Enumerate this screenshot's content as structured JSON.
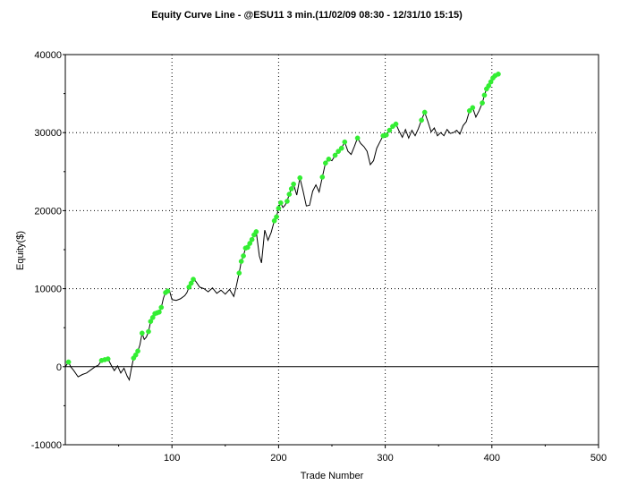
{
  "chart_data": {
    "type": "line",
    "title": "Equity Curve Line - @ESU11 3 min.(11/02/09 08:30 - 12/31/10 15:15)",
    "xlabel": "Trade Number",
    "ylabel": "Equity($)",
    "xlim": [
      0,
      500
    ],
    "ylim": [
      -10000,
      40000
    ],
    "x_ticks": [
      100,
      200,
      300,
      400,
      500
    ],
    "y_ticks": [
      -10000,
      0,
      10000,
      20000,
      30000,
      40000
    ],
    "grid": true,
    "series": [
      {
        "values": [
          [
            0,
            0
          ],
          [
            3,
            600
          ],
          [
            5,
            0
          ],
          [
            8,
            -500
          ],
          [
            12,
            -1300
          ],
          [
            16,
            -1000
          ],
          [
            20,
            -800
          ],
          [
            24,
            -400
          ],
          [
            28,
            0
          ],
          [
            31,
            200
          ],
          [
            34,
            800
          ],
          [
            37,
            900
          ],
          [
            40,
            1000
          ],
          [
            43,
            200
          ],
          [
            46,
            -500
          ],
          [
            49,
            100
          ],
          [
            52,
            -800
          ],
          [
            55,
            -200
          ],
          [
            58,
            -1200
          ],
          [
            60,
            -1700
          ],
          [
            62,
            -200
          ],
          [
            64,
            1100
          ],
          [
            66,
            1500
          ],
          [
            68,
            2000
          ],
          [
            70,
            2800
          ],
          [
            72,
            4300
          ],
          [
            74,
            3500
          ],
          [
            76,
            3800
          ],
          [
            78,
            4500
          ],
          [
            80,
            5800
          ],
          [
            82,
            6300
          ],
          [
            84,
            6800
          ],
          [
            86,
            6900
          ],
          [
            88,
            7000
          ],
          [
            90,
            7600
          ],
          [
            92,
            8800
          ],
          [
            94,
            9500
          ],
          [
            96,
            9700
          ],
          [
            98,
            9600
          ],
          [
            100,
            8600
          ],
          [
            104,
            8500
          ],
          [
            108,
            8700
          ],
          [
            112,
            9100
          ],
          [
            114,
            9500
          ],
          [
            116,
            10200
          ],
          [
            118,
            10700
          ],
          [
            120,
            11200
          ],
          [
            122,
            11000
          ],
          [
            126,
            10200
          ],
          [
            130,
            10000
          ],
          [
            134,
            9600
          ],
          [
            138,
            10100
          ],
          [
            142,
            9400
          ],
          [
            146,
            9800
          ],
          [
            150,
            9300
          ],
          [
            154,
            9900
          ],
          [
            158,
            9000
          ],
          [
            160,
            10100
          ],
          [
            163,
            12000
          ],
          [
            165,
            13500
          ],
          [
            167,
            14200
          ],
          [
            169,
            15200
          ],
          [
            171,
            15300
          ],
          [
            173,
            15800
          ],
          [
            175,
            16300
          ],
          [
            177,
            16900
          ],
          [
            179,
            17300
          ],
          [
            182,
            14200
          ],
          [
            184,
            13300
          ],
          [
            187,
            17500
          ],
          [
            190,
            16200
          ],
          [
            193,
            17200
          ],
          [
            196,
            18700
          ],
          [
            198,
            19200
          ],
          [
            200,
            20300
          ],
          [
            202,
            21000
          ],
          [
            204,
            20400
          ],
          [
            206,
            20700
          ],
          [
            208,
            21200
          ],
          [
            210,
            22100
          ],
          [
            212,
            22800
          ],
          [
            214,
            23400
          ],
          [
            217,
            22000
          ],
          [
            220,
            24200
          ],
          [
            223,
            22500
          ],
          [
            226,
            20600
          ],
          [
            229,
            20700
          ],
          [
            232,
            22500
          ],
          [
            235,
            23300
          ],
          [
            238,
            22400
          ],
          [
            241,
            24300
          ],
          [
            244,
            26100
          ],
          [
            247,
            26600
          ],
          [
            250,
            26400
          ],
          [
            253,
            27100
          ],
          [
            256,
            27600
          ],
          [
            259,
            28000
          ],
          [
            262,
            28800
          ],
          [
            265,
            27600
          ],
          [
            268,
            27200
          ],
          [
            271,
            28200
          ],
          [
            274,
            29300
          ],
          [
            277,
            28600
          ],
          [
            280,
            28200
          ],
          [
            283,
            27600
          ],
          [
            286,
            25900
          ],
          [
            289,
            26400
          ],
          [
            292,
            28000
          ],
          [
            295,
            28800
          ],
          [
            298,
            29600
          ],
          [
            301,
            29700
          ],
          [
            304,
            30300
          ],
          [
            307,
            30800
          ],
          [
            310,
            31100
          ],
          [
            313,
            30200
          ],
          [
            316,
            29400
          ],
          [
            319,
            30400
          ],
          [
            322,
            29300
          ],
          [
            325,
            30300
          ],
          [
            328,
            29600
          ],
          [
            331,
            30500
          ],
          [
            334,
            31600
          ],
          [
            337,
            32600
          ],
          [
            340,
            31400
          ],
          [
            343,
            30100
          ],
          [
            346,
            30600
          ],
          [
            349,
            29600
          ],
          [
            352,
            30000
          ],
          [
            355,
            29600
          ],
          [
            358,
            30400
          ],
          [
            361,
            29900
          ],
          [
            364,
            30000
          ],
          [
            367,
            30300
          ],
          [
            370,
            29800
          ],
          [
            373,
            30900
          ],
          [
            376,
            31400
          ],
          [
            379,
            32800
          ],
          [
            382,
            33200
          ],
          [
            385,
            32000
          ],
          [
            388,
            32800
          ],
          [
            391,
            33800
          ],
          [
            393,
            34800
          ],
          [
            395,
            35600
          ],
          [
            397,
            36000
          ],
          [
            399,
            36500
          ],
          [
            401,
            37000
          ],
          [
            403,
            37300
          ],
          [
            406,
            37500
          ]
        ]
      }
    ],
    "highlight_points": [
      [
        3,
        600
      ],
      [
        34,
        800
      ],
      [
        37,
        900
      ],
      [
        40,
        1000
      ],
      [
        64,
        1100
      ],
      [
        66,
        1500
      ],
      [
        68,
        2000
      ],
      [
        72,
        4300
      ],
      [
        78,
        4500
      ],
      [
        80,
        5800
      ],
      [
        82,
        6300
      ],
      [
        84,
        6800
      ],
      [
        86,
        6900
      ],
      [
        88,
        7000
      ],
      [
        90,
        7600
      ],
      [
        94,
        9500
      ],
      [
        96,
        9700
      ],
      [
        116,
        10200
      ],
      [
        118,
        10700
      ],
      [
        120,
        11200
      ],
      [
        163,
        12000
      ],
      [
        165,
        13500
      ],
      [
        167,
        14200
      ],
      [
        169,
        15200
      ],
      [
        171,
        15300
      ],
      [
        173,
        15800
      ],
      [
        175,
        16300
      ],
      [
        177,
        16900
      ],
      [
        179,
        17300
      ],
      [
        196,
        18700
      ],
      [
        198,
        19200
      ],
      [
        200,
        20300
      ],
      [
        202,
        21000
      ],
      [
        208,
        21200
      ],
      [
        210,
        22100
      ],
      [
        212,
        22800
      ],
      [
        214,
        23400
      ],
      [
        220,
        24200
      ],
      [
        241,
        24300
      ],
      [
        244,
        26100
      ],
      [
        247,
        26600
      ],
      [
        253,
        27100
      ],
      [
        256,
        27600
      ],
      [
        259,
        28000
      ],
      [
        262,
        28800
      ],
      [
        274,
        29300
      ],
      [
        298,
        29600
      ],
      [
        301,
        29700
      ],
      [
        304,
        30300
      ],
      [
        307,
        30800
      ],
      [
        310,
        31100
      ],
      [
        334,
        31600
      ],
      [
        337,
        32600
      ],
      [
        379,
        32800
      ],
      [
        382,
        33200
      ],
      [
        391,
        33800
      ],
      [
        393,
        34800
      ],
      [
        395,
        35600
      ],
      [
        397,
        36000
      ],
      [
        399,
        36500
      ],
      [
        401,
        37000
      ],
      [
        403,
        37300
      ],
      [
        406,
        37500
      ]
    ],
    "colors": {
      "line": "#000000",
      "highlight": "#33ee33",
      "grid": "#000000",
      "background": "#ffffff"
    }
  }
}
